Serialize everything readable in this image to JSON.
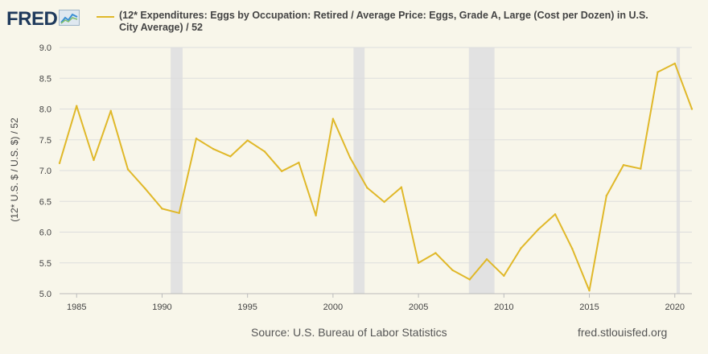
{
  "header": {
    "logo_text": "FRED",
    "logo_icon": "chart-line-icon"
  },
  "legend": {
    "label": "(12* Expenditures: Eggs by Occupation: Retired / Average Price: Eggs, Grade A, Large (Cost per Dozen) in U.S. City Average) / 52"
  },
  "footer": {
    "source": "Source: U.S. Bureau of Labor Statistics",
    "url": "fred.stlouisfed.org"
  },
  "colors": {
    "line": "#e0b829",
    "recession": "#e2e2e2",
    "grid": "#dddddd",
    "background": "#f8f6ea"
  },
  "chart_data": {
    "type": "line",
    "ylabel": "(12* U.S. $ / U.S. $) / 52",
    "xlabel": "",
    "xlim": [
      1984,
      2021
    ],
    "ylim": [
      5.0,
      9.0
    ],
    "yticks": [
      "5.0",
      "5.5",
      "6.0",
      "6.5",
      "7.0",
      "7.5",
      "8.0",
      "8.5",
      "9.0"
    ],
    "xticks": [
      "1985",
      "1990",
      "1995",
      "2000",
      "2005",
      "2010",
      "2015",
      "2020"
    ],
    "grid": "horizontal",
    "legend_position": "top",
    "recessions": [
      [
        1990.5,
        1991.2
      ],
      [
        2001.2,
        2001.85
      ],
      [
        2007.95,
        2009.45
      ],
      [
        2020.1,
        2020.3
      ]
    ],
    "series": [
      {
        "name": "(12* Expenditures: Eggs by Occupation: Retired / Average Price: Eggs, Grade A, Large (Cost per Dozen) in U.S. City Average) / 52",
        "x": [
          1984,
          1985,
          1986,
          1987,
          1988,
          1989,
          1990,
          1991,
          1992,
          1993,
          1994,
          1995,
          1996,
          1997,
          1998,
          1999,
          2000,
          2001,
          2002,
          2003,
          2004,
          2005,
          2006,
          2007,
          2008,
          2009,
          2010,
          2011,
          2012,
          2013,
          2014,
          2015,
          2016,
          2017,
          2018,
          2019,
          2020,
          2021
        ],
        "y": [
          7.12,
          8.05,
          7.17,
          7.97,
          7.02,
          6.71,
          6.38,
          6.31,
          7.52,
          7.35,
          7.23,
          7.49,
          7.31,
          6.99,
          7.13,
          6.27,
          7.84,
          7.21,
          6.72,
          6.49,
          6.73,
          5.5,
          5.66,
          5.38,
          5.23,
          5.56,
          5.29,
          5.74,
          6.04,
          6.29,
          5.73,
          5.05,
          6.59,
          7.09,
          7.03,
          8.6,
          8.74,
          8.0
        ]
      }
    ]
  }
}
